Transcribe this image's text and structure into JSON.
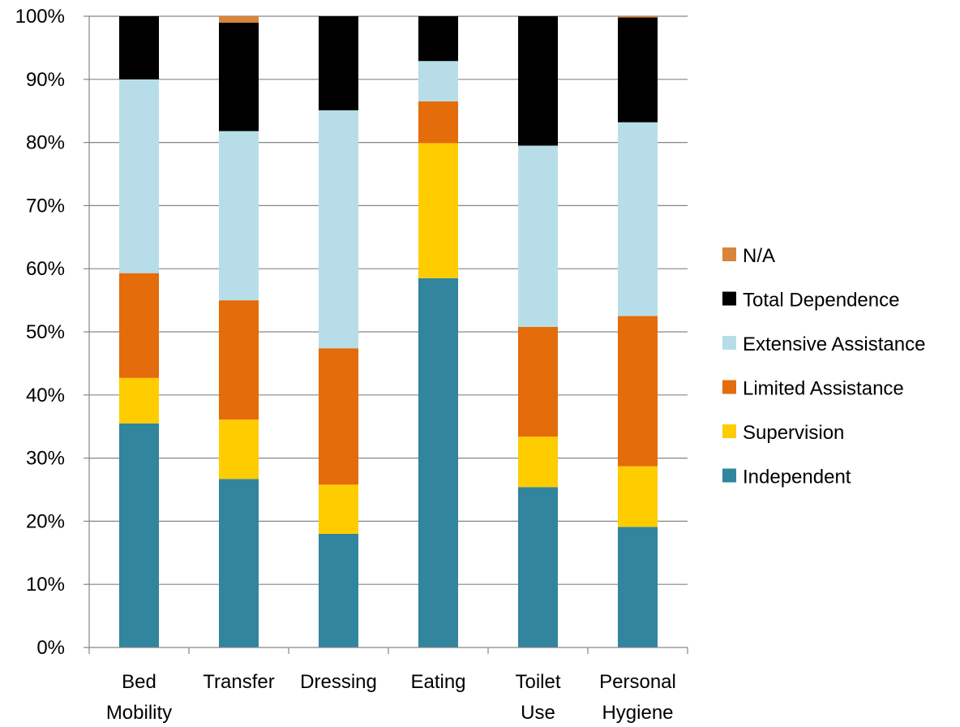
{
  "chart_data": {
    "type": "bar",
    "stacked": true,
    "percent_stacked": true,
    "categories": [
      [
        "Bed",
        "Mobility"
      ],
      [
        "Transfer"
      ],
      [
        "Dressing"
      ],
      [
        "Eating"
      ],
      [
        "Toilet",
        "Use"
      ],
      [
        "Personal",
        "Hygiene"
      ]
    ],
    "yticks": [
      "0%",
      "10%",
      "20%",
      "30%",
      "40%",
      "50%",
      "60%",
      "70%",
      "80%",
      "90%",
      "100%"
    ],
    "ylim": [
      0,
      100
    ],
    "grid": true,
    "legend_position": "right",
    "series": [
      {
        "name": "Independent",
        "color": "#31859C",
        "values": [
          35.5,
          26.7,
          18.0,
          58.5,
          25.4,
          19.1
        ]
      },
      {
        "name": "Supervision",
        "color": "#FFCC00",
        "values": [
          7.2,
          9.4,
          7.8,
          21.4,
          8.0,
          9.6
        ]
      },
      {
        "name": "Limited Assistance",
        "color": "#E46C0A",
        "values": [
          16.6,
          18.9,
          21.6,
          6.6,
          17.4,
          23.8
        ]
      },
      {
        "name": "Extensive Assistance",
        "color": "#B7DEE8",
        "values": [
          30.7,
          26.8,
          37.7,
          6.4,
          28.7,
          30.7
        ]
      },
      {
        "name": "Total Dependence",
        "color": "#000000",
        "values": [
          10.0,
          17.2,
          14.9,
          7.1,
          20.5,
          16.6
        ]
      },
      {
        "name": "N/A",
        "color": "#D9843B",
        "values": [
          0,
          1.0,
          0,
          0,
          0,
          0.2
        ]
      }
    ]
  }
}
